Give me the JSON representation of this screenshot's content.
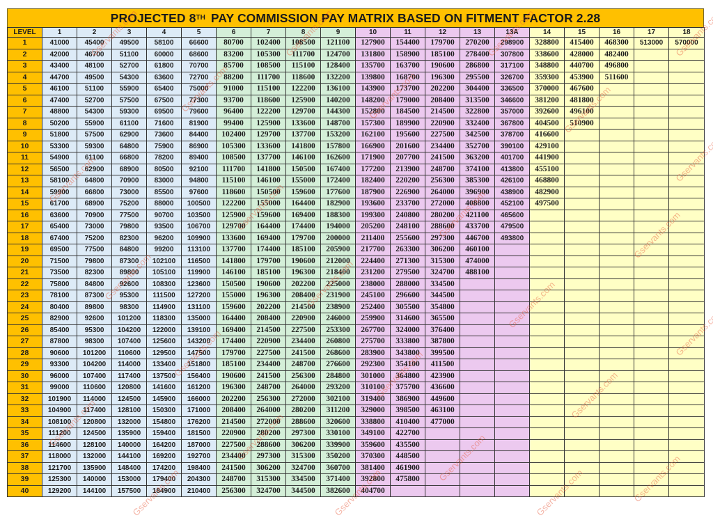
{
  "title": {
    "prefix": "PROJECTED 8",
    "sup": "TH",
    "suffix": " PAY COMMISSION PAY MATRIX BASED ON FITMENT FACTOR 2.28"
  },
  "watermark": "Gservants.com",
  "colors": {
    "level": "#ffc000",
    "levels_1_5": "#ddebf7",
    "levels_6_9": "#d4efd8",
    "levels_10_13A": "#ecc9ef",
    "levels_14_18": "#ffffc5"
  },
  "table": {
    "corner_label": "LEVEL",
    "columns": [
      "1",
      "2",
      "3",
      "4",
      "5",
      "6",
      "7",
      "8",
      "9",
      "10",
      "11",
      "12",
      "13",
      "13A",
      "14",
      "15",
      "16",
      "17",
      "18"
    ],
    "rows": [
      {
        "index": "1",
        "cells": [
          "41000",
          "45400",
          "49500",
          "58100",
          "66600",
          "80700",
          "102400",
          "108500",
          "121100",
          "127900",
          "154400",
          "179700",
          "270200",
          "298900",
          "328800",
          "415400",
          "468300",
          "513000",
          "570000"
        ]
      },
      {
        "index": "2",
        "cells": [
          "42000",
          "46700",
          "51100",
          "60000",
          "68600",
          "83200",
          "105300",
          "111700",
          "124700",
          "131800",
          "158900",
          "185100",
          "278400",
          "307800",
          "338600",
          "428000",
          "482400",
          "",
          ""
        ]
      },
      {
        "index": "3",
        "cells": [
          "43400",
          "48100",
          "52700",
          "61800",
          "70700",
          "85700",
          "108500",
          "115100",
          "128400",
          "135700",
          "163700",
          "190600",
          "286800",
          "317100",
          "348800",
          "440700",
          "496800",
          "",
          ""
        ]
      },
      {
        "index": "4",
        "cells": [
          "44700",
          "49500",
          "54300",
          "63600",
          "72700",
          "88200",
          "111700",
          "118600",
          "132200",
          "139800",
          "168700",
          "196300",
          "295500",
          "326700",
          "359300",
          "453900",
          "511600",
          "",
          ""
        ]
      },
      {
        "index": "5",
        "cells": [
          "46100",
          "51100",
          "55900",
          "65400",
          "75000",
          "91000",
          "115100",
          "122200",
          "136100",
          "143900",
          "173700",
          "202200",
          "304400",
          "336500",
          "370000",
          "467600",
          "",
          "",
          ""
        ]
      },
      {
        "index": "6",
        "cells": [
          "47400",
          "52700",
          "57500",
          "67500",
          "77300",
          "93700",
          "118600",
          "125900",
          "140200",
          "148200",
          "179000",
          "208400",
          "313500",
          "346600",
          "381200",
          "481800",
          "",
          "",
          ""
        ]
      },
      {
        "index": "7",
        "cells": [
          "48800",
          "54300",
          "59300",
          "69500",
          "79600",
          "96400",
          "122200",
          "129700",
          "144300",
          "152800",
          "184500",
          "214500",
          "322800",
          "357000",
          "392600",
          "496100",
          "",
          "",
          ""
        ]
      },
      {
        "index": "8",
        "cells": [
          "50200",
          "55900",
          "61100",
          "71600",
          "81900",
          "99400",
          "125900",
          "133600",
          "148700",
          "157300",
          "189900",
          "220900",
          "332400",
          "367800",
          "404500",
          "510900",
          "",
          "",
          ""
        ]
      },
      {
        "index": "9",
        "cells": [
          "51800",
          "57500",
          "62900",
          "73600",
          "84400",
          "102400",
          "129700",
          "137700",
          "153200",
          "162100",
          "195600",
          "227500",
          "342500",
          "378700",
          "416600",
          "",
          "",
          "",
          ""
        ]
      },
      {
        "index": "10",
        "cells": [
          "53300",
          "59300",
          "64800",
          "75900",
          "86900",
          "105300",
          "133600",
          "141800",
          "157800",
          "166900",
          "201600",
          "234400",
          "352700",
          "390100",
          "429100",
          "",
          "",
          "",
          ""
        ]
      },
      {
        "index": "11",
        "cells": [
          "54900",
          "61100",
          "66800",
          "78200",
          "89400",
          "108500",
          "137700",
          "146100",
          "162600",
          "171900",
          "207700",
          "241500",
          "363200",
          "401700",
          "441900",
          "",
          "",
          "",
          ""
        ]
      },
      {
        "index": "12",
        "cells": [
          "56500",
          "62900",
          "68900",
          "80500",
          "92100",
          "111700",
          "141800",
          "150500",
          "167400",
          "177200",
          "213900",
          "248700",
          "374100",
          "413800",
          "455100",
          "",
          "",
          "",
          ""
        ]
      },
      {
        "index": "13",
        "cells": [
          "58100",
          "64800",
          "70900",
          "83000",
          "94800",
          "115100",
          "146100",
          "155000",
          "172400",
          "182400",
          "220200",
          "256300",
          "385300",
          "426100",
          "468800",
          "",
          "",
          "",
          ""
        ]
      },
      {
        "index": "14",
        "cells": [
          "59900",
          "66800",
          "73000",
          "85500",
          "97600",
          "118600",
          "150500",
          "159600",
          "177600",
          "187900",
          "226900",
          "264000",
          "396900",
          "438900",
          "482900",
          "",
          "",
          "",
          ""
        ]
      },
      {
        "index": "15",
        "cells": [
          "61700",
          "68900",
          "75200",
          "88000",
          "100500",
          "122200",
          "155000",
          "164400",
          "182900",
          "193600",
          "233700",
          "272000",
          "408800",
          "452100",
          "497500",
          "",
          "",
          "",
          ""
        ]
      },
      {
        "index": "16",
        "cells": [
          "63600",
          "70900",
          "77500",
          "90700",
          "103500",
          "125900",
          "159600",
          "169400",
          "188300",
          "199300",
          "240800",
          "280200",
          "421100",
          "465600",
          "",
          "",
          "",
          "",
          ""
        ]
      },
      {
        "index": "17",
        "cells": [
          "65400",
          "73000",
          "79800",
          "93500",
          "106700",
          "129700",
          "164400",
          "174400",
          "194000",
          "205200",
          "248100",
          "288600",
          "433700",
          "479500",
          "",
          "",
          "",
          "",
          ""
        ]
      },
      {
        "index": "18",
        "cells": [
          "67400",
          "75200",
          "82300",
          "96200",
          "109900",
          "133600",
          "169400",
          "179700",
          "200000",
          "211400",
          "255600",
          "297300",
          "446700",
          "493800",
          "",
          "",
          "",
          "",
          ""
        ]
      },
      {
        "index": "19",
        "cells": [
          "69500",
          "77500",
          "84800",
          "99200",
          "113100",
          "137700",
          "174400",
          "185100",
          "205900",
          "217700",
          "263300",
          "306200",
          "460100",
          "",
          "",
          "",
          "",
          "",
          ""
        ]
      },
      {
        "index": "20",
        "cells": [
          "71500",
          "79800",
          "87300",
          "102100",
          "116500",
          "141800",
          "179700",
          "190600",
          "212000",
          "224400",
          "271300",
          "315300",
          "474000",
          "",
          "",
          "",
          "",
          "",
          ""
        ]
      },
      {
        "index": "21",
        "cells": [
          "73500",
          "82300",
          "89800",
          "105100",
          "119900",
          "146100",
          "185100",
          "196300",
          "218400",
          "231200",
          "279500",
          "324700",
          "488100",
          "",
          "",
          "",
          "",
          "",
          ""
        ]
      },
      {
        "index": "22",
        "cells": [
          "75800",
          "84800",
          "92600",
          "108300",
          "123600",
          "150500",
          "190600",
          "202200",
          "225000",
          "238000",
          "288000",
          "334500",
          "",
          "",
          "",
          "",
          "",
          "",
          ""
        ]
      },
      {
        "index": "23",
        "cells": [
          "78100",
          "87300",
          "95300",
          "111500",
          "127200",
          "155000",
          "196300",
          "208400",
          "231900",
          "245100",
          "296600",
          "344500",
          "",
          "",
          "",
          "",
          "",
          "",
          ""
        ]
      },
      {
        "index": "24",
        "cells": [
          "80400",
          "89800",
          "98300",
          "114900",
          "131100",
          "159600",
          "202200",
          "214500",
          "238900",
          "252400",
          "305500",
          "354800",
          "",
          "",
          "",
          "",
          "",
          "",
          ""
        ]
      },
      {
        "index": "25",
        "cells": [
          "82900",
          "92600",
          "101200",
          "118300",
          "135000",
          "164400",
          "208400",
          "220900",
          "246000",
          "259900",
          "314600",
          "365500",
          "",
          "",
          "",
          "",
          "",
          "",
          ""
        ]
      },
      {
        "index": "26",
        "cells": [
          "85400",
          "95300",
          "104200",
          "122000",
          "139100",
          "169400",
          "214500",
          "227500",
          "253300",
          "267700",
          "324000",
          "376400",
          "",
          "",
          "",
          "",
          "",
          "",
          ""
        ]
      },
      {
        "index": "27",
        "cells": [
          "87800",
          "98300",
          "107400",
          "125600",
          "143200",
          "174400",
          "220900",
          "234400",
          "260800",
          "275700",
          "333800",
          "387800",
          "",
          "",
          "",
          "",
          "",
          "",
          ""
        ]
      },
      {
        "index": "28",
        "cells": [
          "90600",
          "101200",
          "110600",
          "129500",
          "147500",
          "179700",
          "227500",
          "241500",
          "268600",
          "283900",
          "343800",
          "399500",
          "",
          "",
          "",
          "",
          "",
          "",
          ""
        ]
      },
      {
        "index": "29",
        "cells": [
          "93300",
          "104200",
          "114000",
          "133400",
          "151800",
          "185100",
          "234400",
          "248700",
          "276600",
          "292300",
          "354100",
          "411500",
          "",
          "",
          "",
          "",
          "",
          "",
          ""
        ]
      },
      {
        "index": "30",
        "cells": [
          "96000",
          "107400",
          "117400",
          "137500",
          "156400",
          "190600",
          "241500",
          "256300",
          "284800",
          "301000",
          "364800",
          "423900",
          "",
          "",
          "",
          "",
          "",
          "",
          ""
        ]
      },
      {
        "index": "31",
        "cells": [
          "99000",
          "110600",
          "120800",
          "141600",
          "161200",
          "196300",
          "248700",
          "264000",
          "293200",
          "310100",
          "375700",
          "436600",
          "",
          "",
          "",
          "",
          "",
          "",
          ""
        ]
      },
      {
        "index": "32",
        "cells": [
          "101900",
          "114000",
          "124500",
          "145900",
          "166000",
          "202200",
          "256300",
          "272000",
          "302100",
          "319400",
          "386900",
          "449600",
          "",
          "",
          "",
          "",
          "",
          "",
          ""
        ]
      },
      {
        "index": "33",
        "cells": [
          "104900",
          "117400",
          "128100",
          "150300",
          "171000",
          "208400",
          "264000",
          "280200",
          "311200",
          "329000",
          "398500",
          "463100",
          "",
          "",
          "",
          "",
          "",
          "",
          ""
        ]
      },
      {
        "index": "34",
        "cells": [
          "108100",
          "120800",
          "132000",
          "154800",
          "176200",
          "214500",
          "272000",
          "288600",
          "320600",
          "338800",
          "410400",
          "477000",
          "",
          "",
          "",
          "",
          "",
          "",
          ""
        ]
      },
      {
        "index": "35",
        "cells": [
          "111200",
          "124500",
          "135900",
          "159400",
          "181500",
          "220900",
          "280200",
          "297300",
          "330100",
          "349100",
          "422700",
          "",
          "",
          "",
          "",
          "",
          "",
          "",
          ""
        ]
      },
      {
        "index": "36",
        "cells": [
          "114600",
          "128100",
          "140000",
          "164200",
          "187000",
          "227500",
          "288600",
          "306200",
          "339900",
          "359600",
          "435500",
          "",
          "",
          "",
          "",
          "",
          "",
          "",
          ""
        ]
      },
      {
        "index": "37",
        "cells": [
          "118000",
          "132000",
          "144100",
          "169200",
          "192700",
          "234400",
          "297300",
          "315300",
          "350200",
          "370300",
          "448500",
          "",
          "",
          "",
          "",
          "",
          "",
          "",
          ""
        ]
      },
      {
        "index": "38",
        "cells": [
          "121700",
          "135900",
          "148400",
          "174200",
          "198400",
          "241500",
          "306200",
          "324700",
          "360700",
          "381400",
          "461900",
          "",
          "",
          "",
          "",
          "",
          "",
          "",
          ""
        ]
      },
      {
        "index": "39",
        "cells": [
          "125300",
          "140000",
          "153000",
          "179400",
          "204300",
          "248700",
          "315300",
          "334500",
          "371400",
          "392800",
          "475800",
          "",
          "",
          "",
          "",
          "",
          "",
          "",
          ""
        ]
      },
      {
        "index": "40",
        "cells": [
          "129200",
          "144100",
          "157500",
          "184900",
          "210400",
          "256300",
          "324700",
          "344500",
          "382600",
          "404700",
          "",
          "",
          "",
          "",
          "",
          "",
          "",
          "",
          ""
        ]
      }
    ]
  }
}
